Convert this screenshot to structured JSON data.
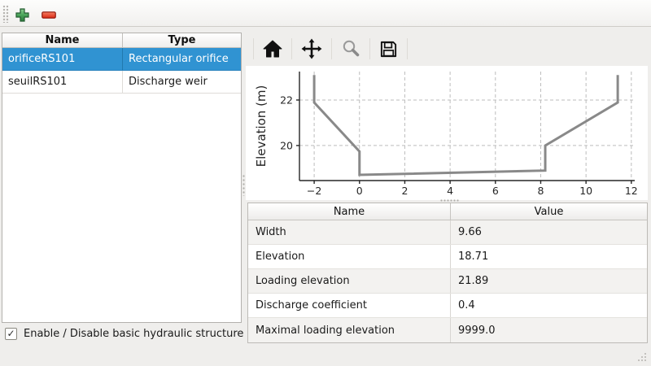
{
  "toolbar": {
    "add_icon": "plus-icon",
    "remove_icon": "minus-icon",
    "add_color": "#3c9a4e",
    "remove_color": "#e23a24"
  },
  "structures_table": {
    "columns": [
      "Name",
      "Type"
    ],
    "rows": [
      {
        "name": "orificeRS101",
        "type": "Rectangular orifice",
        "selected": true
      },
      {
        "name": "seuilRS101",
        "type": "Discharge weir",
        "selected": false
      }
    ],
    "selection_color": "#3093d2"
  },
  "enable_checkbox": {
    "label": "Enable / Disable basic hydraulic structure",
    "checked": true,
    "glyph": "✓"
  },
  "plot_toolbar": {
    "icons": [
      "home-icon",
      "pan-icon",
      "zoom-icon",
      "save-icon"
    ]
  },
  "chart_data": {
    "type": "line",
    "title": "",
    "xlabel": "",
    "ylabel": "Elevation (m)",
    "x": [
      -2,
      -2,
      0,
      0,
      8.2,
      8.2,
      11.4,
      11.4
    ],
    "y": [
      23.1,
      21.89,
      19.74,
      18.71,
      18.9,
      20.0,
      21.89,
      23.1
    ],
    "xticks": [
      -2,
      0,
      2,
      4,
      6,
      8,
      10,
      12
    ],
    "yticks": [
      20,
      22
    ],
    "xlim": [
      -2.65,
      12.15
    ],
    "ylim": [
      18.46,
      23.25
    ],
    "grid": true,
    "grid_color": "#bcbcbc",
    "line_color": "#898989",
    "axis_color": "#262626",
    "legend": null
  },
  "properties_table": {
    "columns": [
      "Name",
      "Value"
    ],
    "rows": [
      {
        "name": "Width",
        "value": "9.66"
      },
      {
        "name": "Elevation",
        "value": "18.71"
      },
      {
        "name": "Loading elevation",
        "value": "21.89"
      },
      {
        "name": "Discharge coefficient",
        "value": "0.4"
      },
      {
        "name": "Maximal loading elevation",
        "value": "9999.0"
      }
    ]
  }
}
